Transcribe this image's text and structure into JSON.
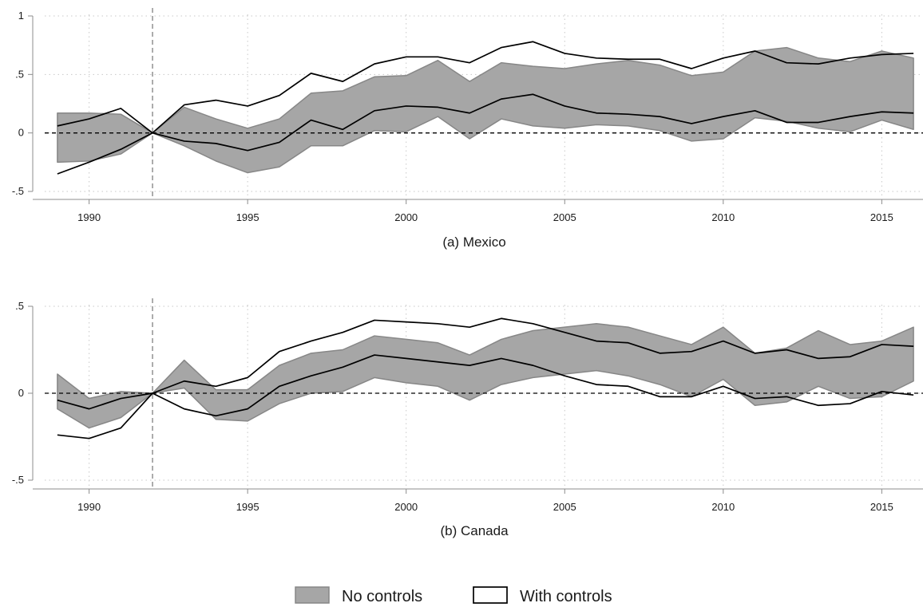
{
  "chart_data": [
    {
      "type": "area",
      "caption": "(a) Mexico",
      "x": [
        1989,
        1990,
        1991,
        1992,
        1993,
        1994,
        1995,
        1996,
        1997,
        1998,
        1999,
        2000,
        2001,
        2002,
        2003,
        2004,
        2005,
        2006,
        2007,
        2008,
        2009,
        2010,
        2011,
        2012,
        2013,
        2014,
        2015,
        2016
      ],
      "xlim": [
        1988.6,
        2016.3
      ],
      "ylim": [
        -0.5,
        1
      ],
      "xticks": [
        1990,
        1995,
        2000,
        2005,
        2010,
        2015
      ],
      "xtick_labels": [
        "1990",
        "1995",
        "2000",
        "2005",
        "2010",
        "2015"
      ],
      "yticks": [
        -0.5,
        0,
        0.5,
        1
      ],
      "ytick_labels": [
        "-.5",
        "0",
        ".5",
        "1"
      ],
      "reference_x": 1992,
      "reference_y": 0,
      "grid": true,
      "series": [
        {
          "name": "No controls",
          "upper": [
            0.17,
            0.17,
            0.16,
            0.0,
            0.22,
            0.12,
            0.04,
            0.12,
            0.34,
            0.36,
            0.48,
            0.49,
            0.62,
            0.44,
            0.6,
            0.57,
            0.55,
            0.59,
            0.62,
            0.58,
            0.49,
            0.52,
            0.7,
            0.73,
            0.64,
            0.61,
            0.7,
            0.64
          ],
          "lower": [
            -0.25,
            -0.24,
            -0.18,
            0.0,
            -0.11,
            -0.24,
            -0.34,
            -0.29,
            -0.11,
            -0.11,
            0.02,
            0.01,
            0.14,
            -0.05,
            0.12,
            0.06,
            0.04,
            0.07,
            0.06,
            0.02,
            -0.07,
            -0.05,
            0.13,
            0.1,
            0.04,
            0.01,
            0.11,
            0.03
          ]
        },
        {
          "name": "With controls",
          "upper": [
            0.06,
            0.12,
            0.21,
            0.0,
            0.24,
            0.28,
            0.23,
            0.32,
            0.51,
            0.44,
            0.59,
            0.65,
            0.65,
            0.6,
            0.73,
            0.78,
            0.68,
            0.64,
            0.63,
            0.63,
            0.55,
            0.64,
            0.7,
            0.6,
            0.59,
            0.64,
            0.67,
            0.68
          ],
          "lower": [
            -0.35,
            -0.25,
            -0.14,
            0.0,
            -0.07,
            -0.09,
            -0.15,
            -0.08,
            0.11,
            0.03,
            0.19,
            0.23,
            0.22,
            0.17,
            0.29,
            0.33,
            0.23,
            0.17,
            0.16,
            0.14,
            0.08,
            0.14,
            0.19,
            0.09,
            0.09,
            0.14,
            0.18,
            0.17
          ]
        }
      ]
    },
    {
      "type": "area",
      "caption": "(b) Canada",
      "x": [
        1989,
        1990,
        1991,
        1992,
        1993,
        1994,
        1995,
        1996,
        1997,
        1998,
        1999,
        2000,
        2001,
        2002,
        2003,
        2004,
        2005,
        2006,
        2007,
        2008,
        2009,
        2010,
        2011,
        2012,
        2013,
        2014,
        2015,
        2016
      ],
      "xlim": [
        1988.6,
        2016.3
      ],
      "ylim": [
        -0.5,
        0.5
      ],
      "xticks": [
        1990,
        1995,
        2000,
        2005,
        2010,
        2015
      ],
      "xtick_labels": [
        "1990",
        "1995",
        "2000",
        "2005",
        "2010",
        "2015"
      ],
      "yticks": [
        -0.5,
        0,
        0.5
      ],
      "ytick_labels": [
        "-.5",
        "0",
        ".5"
      ],
      "reference_x": 1992,
      "reference_y": 0,
      "grid": true,
      "series": [
        {
          "name": "No controls",
          "upper": [
            0.11,
            -0.03,
            0.01,
            0.0,
            0.19,
            0.02,
            0.02,
            0.16,
            0.23,
            0.25,
            0.33,
            0.31,
            0.29,
            0.22,
            0.31,
            0.36,
            0.38,
            0.4,
            0.38,
            0.33,
            0.28,
            0.38,
            0.23,
            0.26,
            0.36,
            0.28,
            0.3,
            0.38
          ],
          "lower": [
            -0.09,
            -0.2,
            -0.14,
            0.0,
            0.03,
            -0.15,
            -0.16,
            -0.06,
            0.0,
            0.01,
            0.09,
            0.06,
            0.04,
            -0.04,
            0.05,
            0.09,
            0.11,
            0.13,
            0.1,
            0.05,
            -0.02,
            0.08,
            -0.07,
            -0.05,
            0.04,
            -0.03,
            -0.02,
            0.07
          ]
        },
        {
          "name": "With controls",
          "upper": [
            -0.04,
            -0.09,
            -0.03,
            0.0,
            0.07,
            0.04,
            0.09,
            0.24,
            0.3,
            0.35,
            0.42,
            0.41,
            0.4,
            0.38,
            0.43,
            0.4,
            0.35,
            0.3,
            0.29,
            0.23,
            0.24,
            0.3,
            0.23,
            0.25,
            0.2,
            0.21,
            0.28,
            0.27
          ],
          "lower": [
            -0.24,
            -0.26,
            -0.2,
            0.0,
            -0.09,
            -0.13,
            -0.09,
            0.04,
            0.1,
            0.15,
            0.22,
            0.2,
            0.18,
            0.16,
            0.2,
            0.16,
            0.1,
            0.05,
            0.04,
            -0.02,
            -0.02,
            0.04,
            -0.03,
            -0.02,
            -0.07,
            -0.06,
            0.01,
            -0.01
          ]
        }
      ]
    }
  ],
  "legend": {
    "placement": "bottom-center",
    "items": [
      {
        "label": "No controls",
        "swatch": "filled"
      },
      {
        "label": "With controls",
        "swatch": "outline"
      }
    ]
  },
  "colors": {
    "band_fill": "#a6a6a6",
    "band_edge": "#878787",
    "line": "#000000",
    "grid": "#c8c8c8",
    "axis": "#8c8c8c",
    "reference_line": "#808080",
    "zero_line": "#000000"
  }
}
